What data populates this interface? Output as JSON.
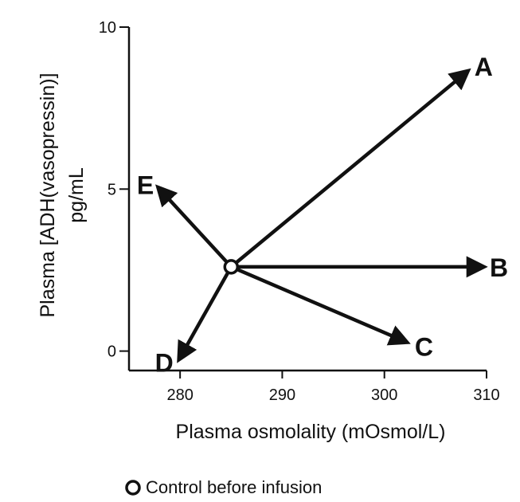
{
  "chart_data": {
    "type": "scatter",
    "title": "",
    "xlabel": "Plasma osmolality (mOsmol/L)",
    "ylabel": "Plasma [ADH(vasopressin)] pg/mL",
    "ylabel_lines": [
      "Plasma [ADH(vasopressin)]",
      "pg/mL"
    ],
    "xlim": [
      275,
      310
    ],
    "ylim": [
      -0.6,
      10
    ],
    "x_ticks": [
      280,
      290,
      300,
      310
    ],
    "y_ticks": [
      0,
      5,
      10
    ],
    "grid": false,
    "origin": {
      "x": 285,
      "y": 2.6
    },
    "points": [
      {
        "label": "A",
        "x": 308,
        "y": 8.6
      },
      {
        "label": "B",
        "x": 309.5,
        "y": 2.6
      },
      {
        "label": "C",
        "x": 302,
        "y": 0.3
      },
      {
        "label": "D",
        "x": 280,
        "y": -0.2
      },
      {
        "label": "E",
        "x": 278,
        "y": 5.0
      }
    ],
    "legend": {
      "marker": "open-circle",
      "text": "Control before infusion",
      "placement": "bottom-left"
    }
  }
}
